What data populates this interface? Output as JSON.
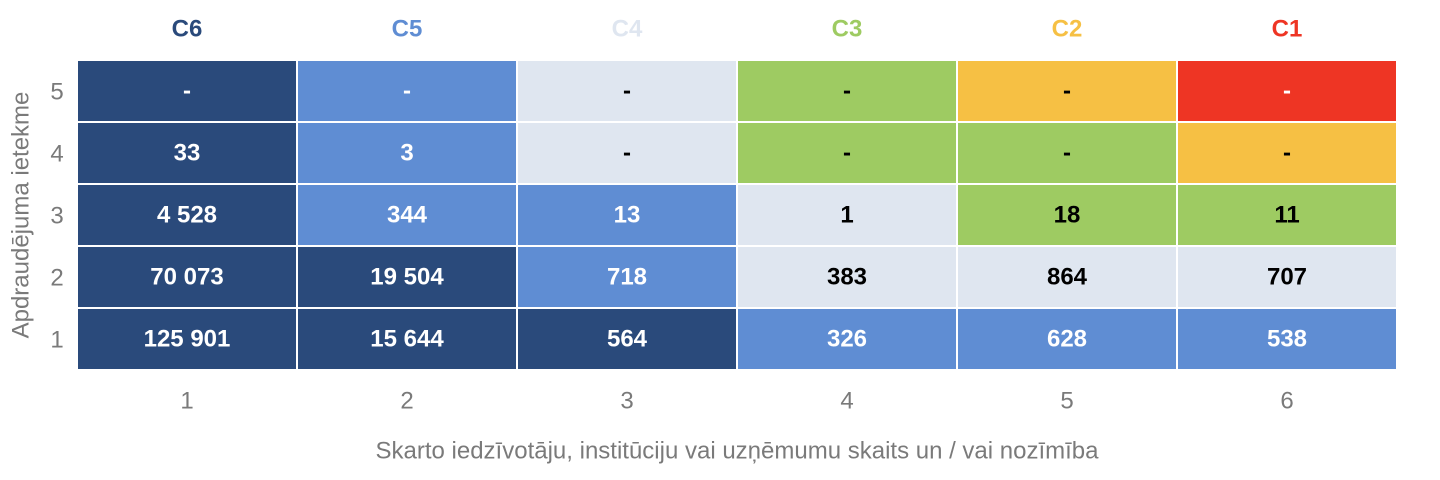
{
  "chart_data": {
    "type": "heatmap",
    "x_label": "Skarto iedzīvotāju, institūciju vai uzņēmumu skaits un / vai nozīmība",
    "y_label": "Apdraudējuma ietekme",
    "classes": [
      {
        "name": "C6",
        "color": "#2a4a7b"
      },
      {
        "name": "C5",
        "color": "#5f8dd3"
      },
      {
        "name": "C4",
        "color": "#dfe6f0"
      },
      {
        "name": "C3",
        "color": "#9ecb62"
      },
      {
        "name": "C2",
        "color": "#f6c044"
      },
      {
        "name": "C1",
        "color": "#ee3524"
      }
    ],
    "x_categories": [
      1,
      2,
      3,
      4,
      5,
      6
    ],
    "y_categories": [
      1,
      2,
      3,
      4,
      5
    ],
    "values": [
      [
        125901,
        15644,
        564,
        326,
        628,
        538
      ],
      [
        70073,
        19504,
        718,
        383,
        864,
        707
      ],
      [
        4528,
        344,
        13,
        1,
        18,
        11
      ],
      [
        33,
        3,
        null,
        null,
        null,
        null
      ],
      [
        null,
        null,
        null,
        null,
        null,
        null
      ]
    ],
    "value_labels": [
      [
        "125 901",
        "15 644",
        "564",
        "326",
        "628",
        "538"
      ],
      [
        "70 073",
        "19 504",
        "718",
        "383",
        "864",
        "707"
      ],
      [
        "4 528",
        "344",
        "13",
        "1",
        "18",
        "11"
      ],
      [
        "33",
        "3",
        "-",
        "-",
        "-",
        "-"
      ],
      [
        "-",
        "-",
        "-",
        "-",
        "-",
        "-"
      ]
    ],
    "cell_colors": [
      [
        "#2a4a7b",
        "#2a4a7b",
        "#2a4a7b",
        "#5f8dd3",
        "#5f8dd3",
        "#5f8dd3"
      ],
      [
        "#2a4a7b",
        "#2a4a7b",
        "#5f8dd3",
        "#dfe6f0",
        "#dfe6f0",
        "#dfe6f0"
      ],
      [
        "#2a4a7b",
        "#5f8dd3",
        "#5f8dd3",
        "#dfe6f0",
        "#9ecb62",
        "#9ecb62"
      ],
      [
        "#2a4a7b",
        "#5f8dd3",
        "#dfe6f0",
        "#9ecb62",
        "#9ecb62",
        "#f6c044"
      ],
      [
        "#2a4a7b",
        "#5f8dd3",
        "#dfe6f0",
        "#9ecb62",
        "#f6c044",
        "#ee3524"
      ]
    ]
  }
}
